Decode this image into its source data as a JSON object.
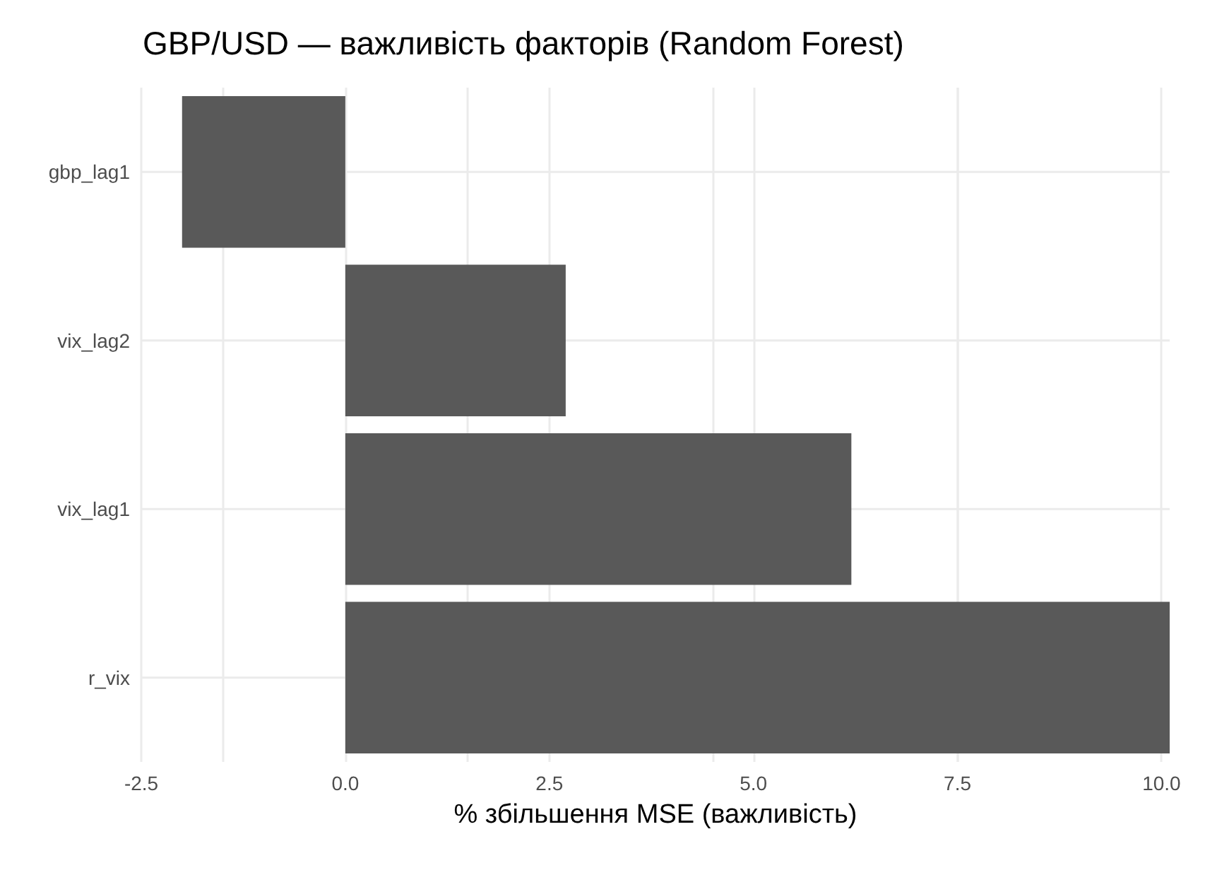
{
  "chart_data": {
    "type": "bar",
    "orientation": "horizontal",
    "title": "GBP/USD — важливість факторів (Random Forest)",
    "xlabel": "% збільшення MSE (важливість)",
    "categories": [
      "gbp_lag1",
      "vix_lag2",
      "vix_lag1",
      "r_vix"
    ],
    "values": [
      -2.0,
      2.7,
      6.2,
      10.1
    ],
    "color": "#595959",
    "xlim": [
      -2.5,
      10.1
    ],
    "xticks": [
      {
        "value": -2.5,
        "label": "-2.5"
      },
      {
        "value": 0,
        "label": "0.0"
      },
      {
        "value": 2.5,
        "label": "2.5"
      },
      {
        "value": 5,
        "label": "5.0"
      },
      {
        "value": 7.5,
        "label": "7.5"
      },
      {
        "value": 10,
        "label": "10.0"
      }
    ],
    "grid": true
  }
}
